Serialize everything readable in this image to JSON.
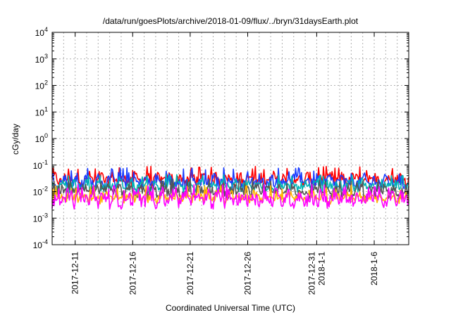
{
  "chart_data": {
    "type": "line",
    "title": "/data/run/goesPlots/archive/2018-01-09/flux/../bryn/31daysEarth.plot",
    "xlabel": "Coordinated Universal Time (UTC)",
    "ylabel": "cGy/day",
    "yscale": "log",
    "ylim": [
      0.0001,
      10000
    ],
    "xlim": [
      "2017-12-09",
      "2018-01-09"
    ],
    "grid": true,
    "y_ticks": [
      {
        "value": 0.0001,
        "base": "10",
        "exp": "-4"
      },
      {
        "value": 0.001,
        "base": "10",
        "exp": "-3"
      },
      {
        "value": 0.01,
        "base": "10",
        "exp": "-2"
      },
      {
        "value": 0.1,
        "base": "10",
        "exp": "-1"
      },
      {
        "value": 1,
        "base": "10",
        "exp": "0"
      },
      {
        "value": 10,
        "base": "10",
        "exp": "1"
      },
      {
        "value": 100,
        "base": "10",
        "exp": "2"
      },
      {
        "value": 1000,
        "base": "10",
        "exp": "3"
      },
      {
        "value": 10000,
        "base": "10",
        "exp": "4"
      }
    ],
    "x_ticks": [
      {
        "date": "2017-12-11",
        "labels": [
          "2017-12-11"
        ]
      },
      {
        "date": "2017-12-16",
        "labels": [
          "2017-12-16"
        ]
      },
      {
        "date": "2017-12-21",
        "labels": [
          "2017-12-21"
        ]
      },
      {
        "date": "2017-12-26",
        "labels": [
          "2017-12-26"
        ]
      },
      {
        "date": "2018-01-01",
        "labels": [
          "2017-12-31",
          "2018-1-1"
        ]
      },
      {
        "date": "2018-01-06",
        "labels": [
          "2018-1-6"
        ]
      }
    ],
    "series": [
      {
        "color": "#ff0000",
        "base": 0.028,
        "spread": 0.45,
        "peak": 0.09
      },
      {
        "color": "#1a3cff",
        "base": 0.024,
        "spread": 0.45,
        "peak": 0.08
      },
      {
        "color": "#00b4b4",
        "base": 0.016,
        "spread": 0.35,
        "peak": 0.045
      },
      {
        "color": "#555555",
        "base": 0.01,
        "spread": 0.4,
        "peak": 0.03
      },
      {
        "color": "#ffb400",
        "base": 0.006,
        "spread": 0.35,
        "peak": 0.018
      },
      {
        "color": "#ff00ff",
        "base": 0.0055,
        "spread": 0.55,
        "peak": 0.02
      }
    ]
  }
}
